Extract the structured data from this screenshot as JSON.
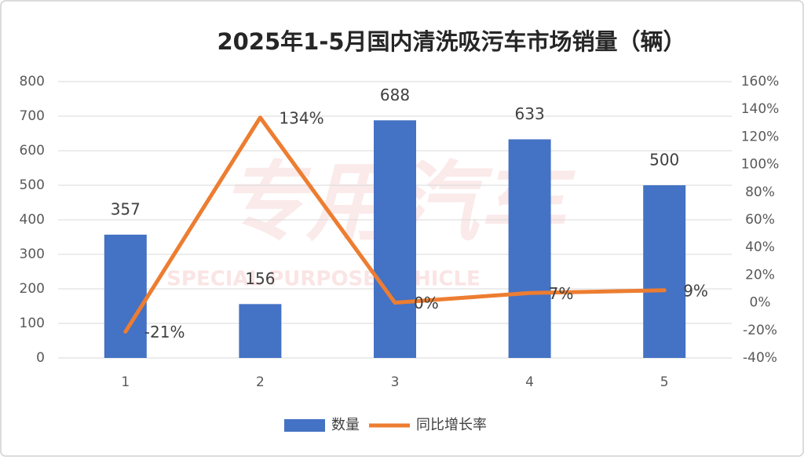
{
  "chart_data": {
    "type": "bar-line",
    "title": "2025年1-5月国内清洗吸污车市场销量（辆）",
    "watermark": [
      "专用汽车",
      "SPECIAL PURPOSE VEHICLE"
    ],
    "categories": [
      "1",
      "2",
      "3",
      "4",
      "5"
    ],
    "series": [
      {
        "name": "数量",
        "type": "bar",
        "color": "#4472c4",
        "values": [
          357,
          156,
          688,
          633,
          500
        ]
      },
      {
        "name": "同比增长率",
        "type": "line",
        "axis": "y2",
        "color": "#ed7d31",
        "values": [
          -21,
          134,
          0,
          7,
          9
        ],
        "value_labels": [
          "-21%",
          "134%",
          "0%",
          "7%",
          "9%"
        ]
      }
    ],
    "ylim": [
      0,
      800
    ],
    "yticks": [
      0,
      100,
      200,
      300,
      400,
      500,
      600,
      700,
      800
    ],
    "y2lim": [
      -40,
      160
    ],
    "y2ticks": [
      {
        "value": -40,
        "label": "-40%"
      },
      {
        "value": -20,
        "label": "-20%"
      },
      {
        "value": 0,
        "label": "0%"
      },
      {
        "value": 20,
        "label": "20%"
      },
      {
        "value": 40,
        "label": "40%"
      },
      {
        "value": 60,
        "label": "60%"
      },
      {
        "value": 80,
        "label": "80%"
      },
      {
        "value": 100,
        "label": "100%"
      },
      {
        "value": 120,
        "label": "120%"
      },
      {
        "value": 140,
        "label": "140%"
      },
      {
        "value": 160,
        "label": "160%"
      }
    ],
    "grid": true,
    "legend": "bottom"
  }
}
